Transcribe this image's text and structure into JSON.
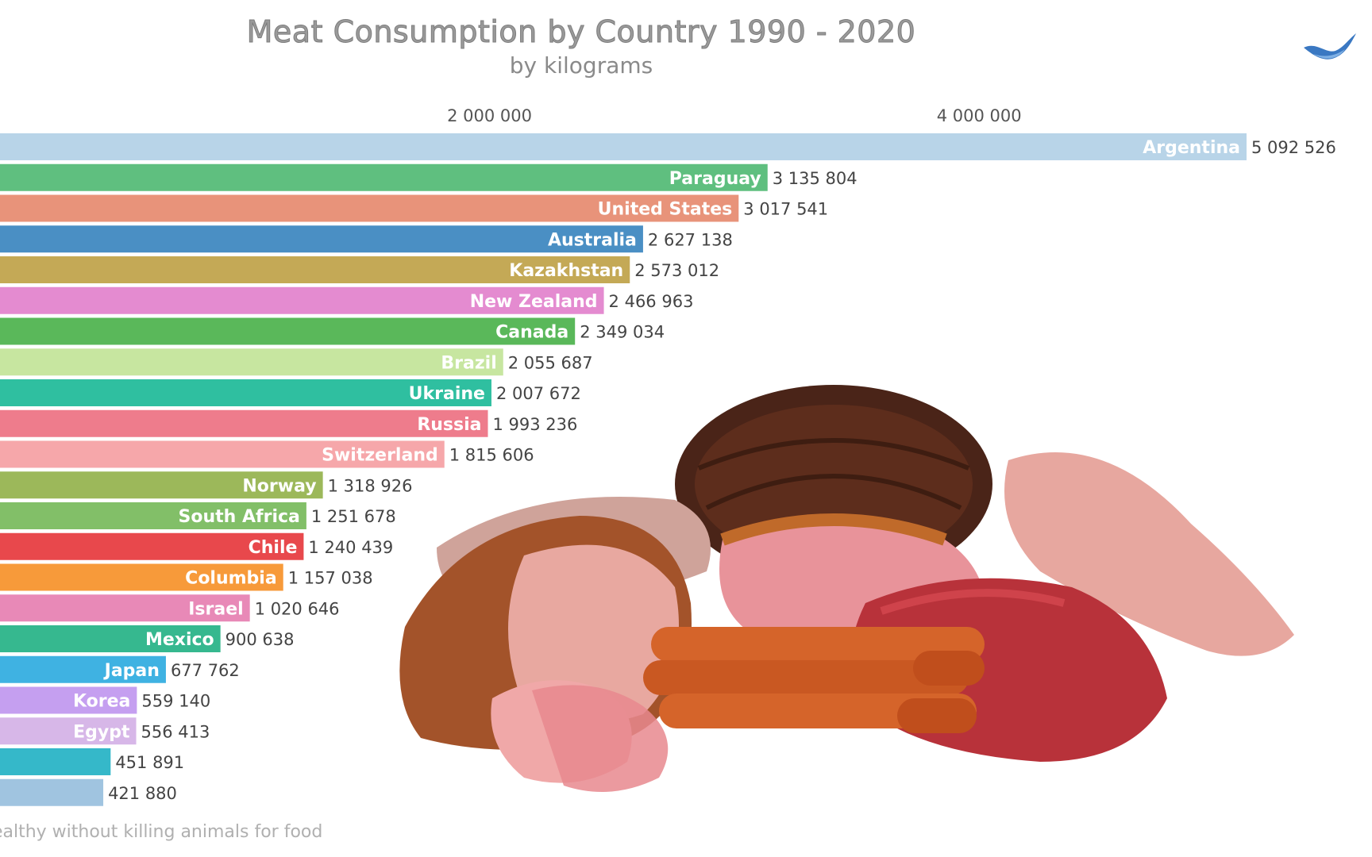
{
  "title": "Meat Consumption by Country 1990 - 2020",
  "subtitle": "by kilograms",
  "footer": "healthy without killing animals for food",
  "chart_data": {
    "type": "bar",
    "orientation": "horizontal",
    "title": "Meat Consumption by Country 1990 - 2020",
    "subtitle": "by kilograms",
    "xlim": [
      0,
      5092526
    ],
    "ticks": [
      {
        "value": 2000000,
        "label": "2 000 000"
      },
      {
        "value": 4000000,
        "label": "4 000 000"
      }
    ],
    "grid": false,
    "legend": "none",
    "bars": [
      {
        "label": "Argentina",
        "value": 5092526,
        "value_label": "5 092 526",
        "color": "#b8d4e8"
      },
      {
        "label": "Paraguay",
        "value": 3135804,
        "value_label": "3 135 804",
        "color": "#5fbf7f"
      },
      {
        "label": "United States",
        "value": 3017541,
        "value_label": "3 017 541",
        "color": "#e8937a"
      },
      {
        "label": "Australia",
        "value": 2627138,
        "value_label": "2 627 138",
        "color": "#4a8fc4"
      },
      {
        "label": "Kazakhstan",
        "value": 2573012,
        "value_label": "2 573 012",
        "color": "#c4a956"
      },
      {
        "label": "New Zealand",
        "value": 2466963,
        "value_label": "2 466 963",
        "color": "#e48bd0"
      },
      {
        "label": "Canada",
        "value": 2349034,
        "value_label": "2 349 034",
        "color": "#5ab85a"
      },
      {
        "label": "Brazil",
        "value": 2055687,
        "value_label": "2 055 687",
        "color": "#c7e6a0"
      },
      {
        "label": "Ukraine",
        "value": 2007672,
        "value_label": "2 007 672",
        "color": "#2fbfa0"
      },
      {
        "label": "Russia",
        "value": 1993236,
        "value_label": "1 993 236",
        "color": "#ee7c8c"
      },
      {
        "label": "Switzerland",
        "value": 1815606,
        "value_label": "1 815 606",
        "color": "#f6a7aa"
      },
      {
        "label": "Norway",
        "value": 1318926,
        "value_label": "1 318 926",
        "color": "#9cb85a"
      },
      {
        "label": "South Africa",
        "value": 1251678,
        "value_label": "1 251 678",
        "color": "#82bf68"
      },
      {
        "label": "Chile",
        "value": 1240439,
        "value_label": "1 240 439",
        "color": "#e8484c"
      },
      {
        "label": "Columbia",
        "value": 1157038,
        "value_label": "1 157 038",
        "color": "#f79a3a"
      },
      {
        "label": "Israel",
        "value": 1020646,
        "value_label": "1 020 646",
        "color": "#e889b7"
      },
      {
        "label": "Mexico",
        "value": 900638,
        "value_label": "900 638",
        "color": "#36b88f"
      },
      {
        "label": "Japan",
        "value": 677762,
        "value_label": "677 762",
        "color": "#3fb2e2"
      },
      {
        "label": "Korea",
        "value": 559140,
        "value_label": "559 140",
        "color": "#c59ff0"
      },
      {
        "label": "Egypt",
        "value": 556413,
        "value_label": "556 413",
        "color": "#d7b7e8"
      },
      {
        "label": "",
        "value": 451891,
        "value_label": "451 891",
        "color": "#35b8c9"
      },
      {
        "label": "",
        "value": 421880,
        "value_label": "421 880",
        "color": "#a0c4e0"
      }
    ]
  }
}
